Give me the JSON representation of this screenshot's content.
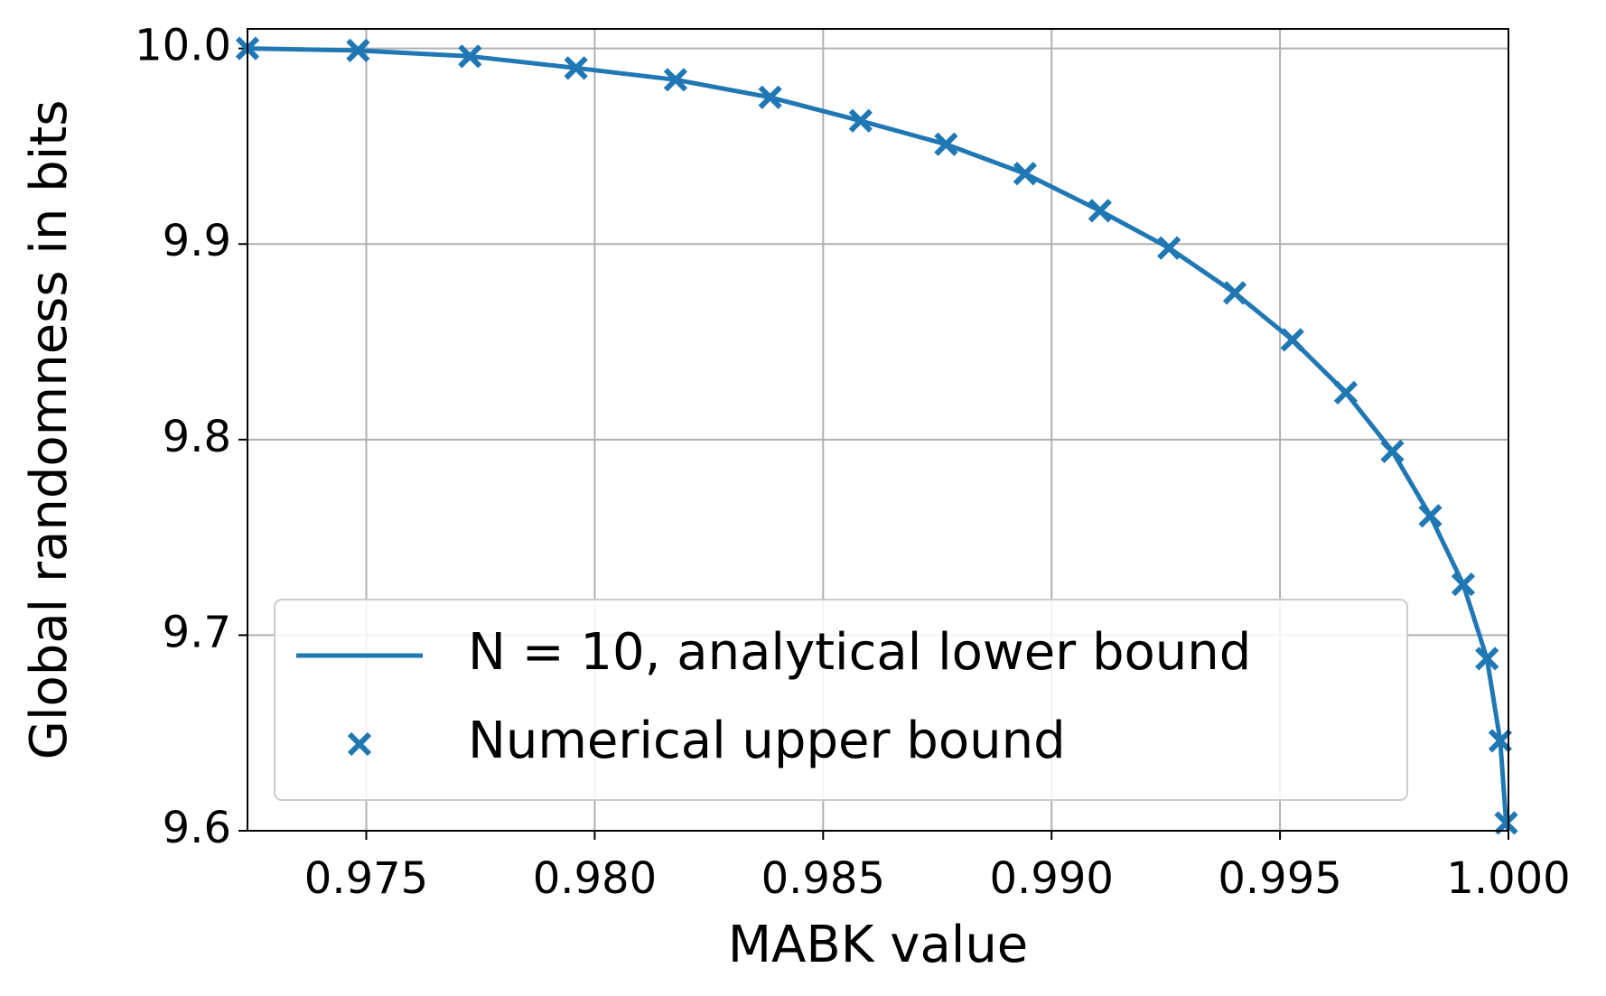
{
  "chart_data": {
    "type": "line",
    "xlabel": "MABK value",
    "ylabel": "Global randomness in bits",
    "xlim": [
      0.9724,
      1.0
    ],
    "ylim": [
      9.6,
      10.01
    ],
    "xticks": [
      0.975,
      {
        "value": 0.98,
        "label": "0.980"
      },
      0.985,
      {
        "value": 0.99,
        "label": "0.990"
      },
      0.995,
      {
        "value": 1.0,
        "label": "1.000"
      }
    ],
    "yticks": [
      9.6,
      9.7,
      9.8,
      9.9,
      {
        "value": 10.0,
        "label": "10.0"
      }
    ],
    "grid": true,
    "legend": "lower left",
    "series": [
      {
        "name": "N = 10, analytical lower bound",
        "color": "#1f77b4",
        "style": "line",
        "x": [
          0.9724,
          0.97482,
          0.97727,
          0.97959,
          0.98177,
          0.98384,
          0.98582,
          0.98769,
          0.98942,
          0.99106,
          0.99257,
          0.99401,
          0.99527,
          0.99644,
          0.99746,
          0.99829,
          0.99901,
          0.99953,
          0.99982,
          0.99995,
          1.0
        ],
        "values": [
          10.0,
          9.999,
          9.996,
          9.99,
          9.984,
          9.975,
          9.963,
          9.951,
          9.936,
          9.917,
          9.898,
          9.875,
          9.851,
          9.824,
          9.794,
          9.761,
          9.726,
          9.688,
          9.646,
          9.604,
          9.6
        ]
      },
      {
        "name": "Numerical upper bound",
        "color": "#1f77b4",
        "style": "marker",
        "x": [
          0.9724,
          0.97482,
          0.97727,
          0.97959,
          0.98177,
          0.98384,
          0.98582,
          0.98769,
          0.98942,
          0.99106,
          0.99257,
          0.99401,
          0.99527,
          0.99644,
          0.99746,
          0.99829,
          0.99901,
          0.99953,
          0.99982,
          0.99995
        ],
        "values": [
          10.0,
          9.999,
          9.996,
          9.99,
          9.984,
          9.975,
          9.963,
          9.951,
          9.936,
          9.917,
          9.898,
          9.875,
          9.851,
          9.824,
          9.794,
          9.761,
          9.726,
          9.688,
          9.646,
          9.604
        ]
      }
    ]
  }
}
